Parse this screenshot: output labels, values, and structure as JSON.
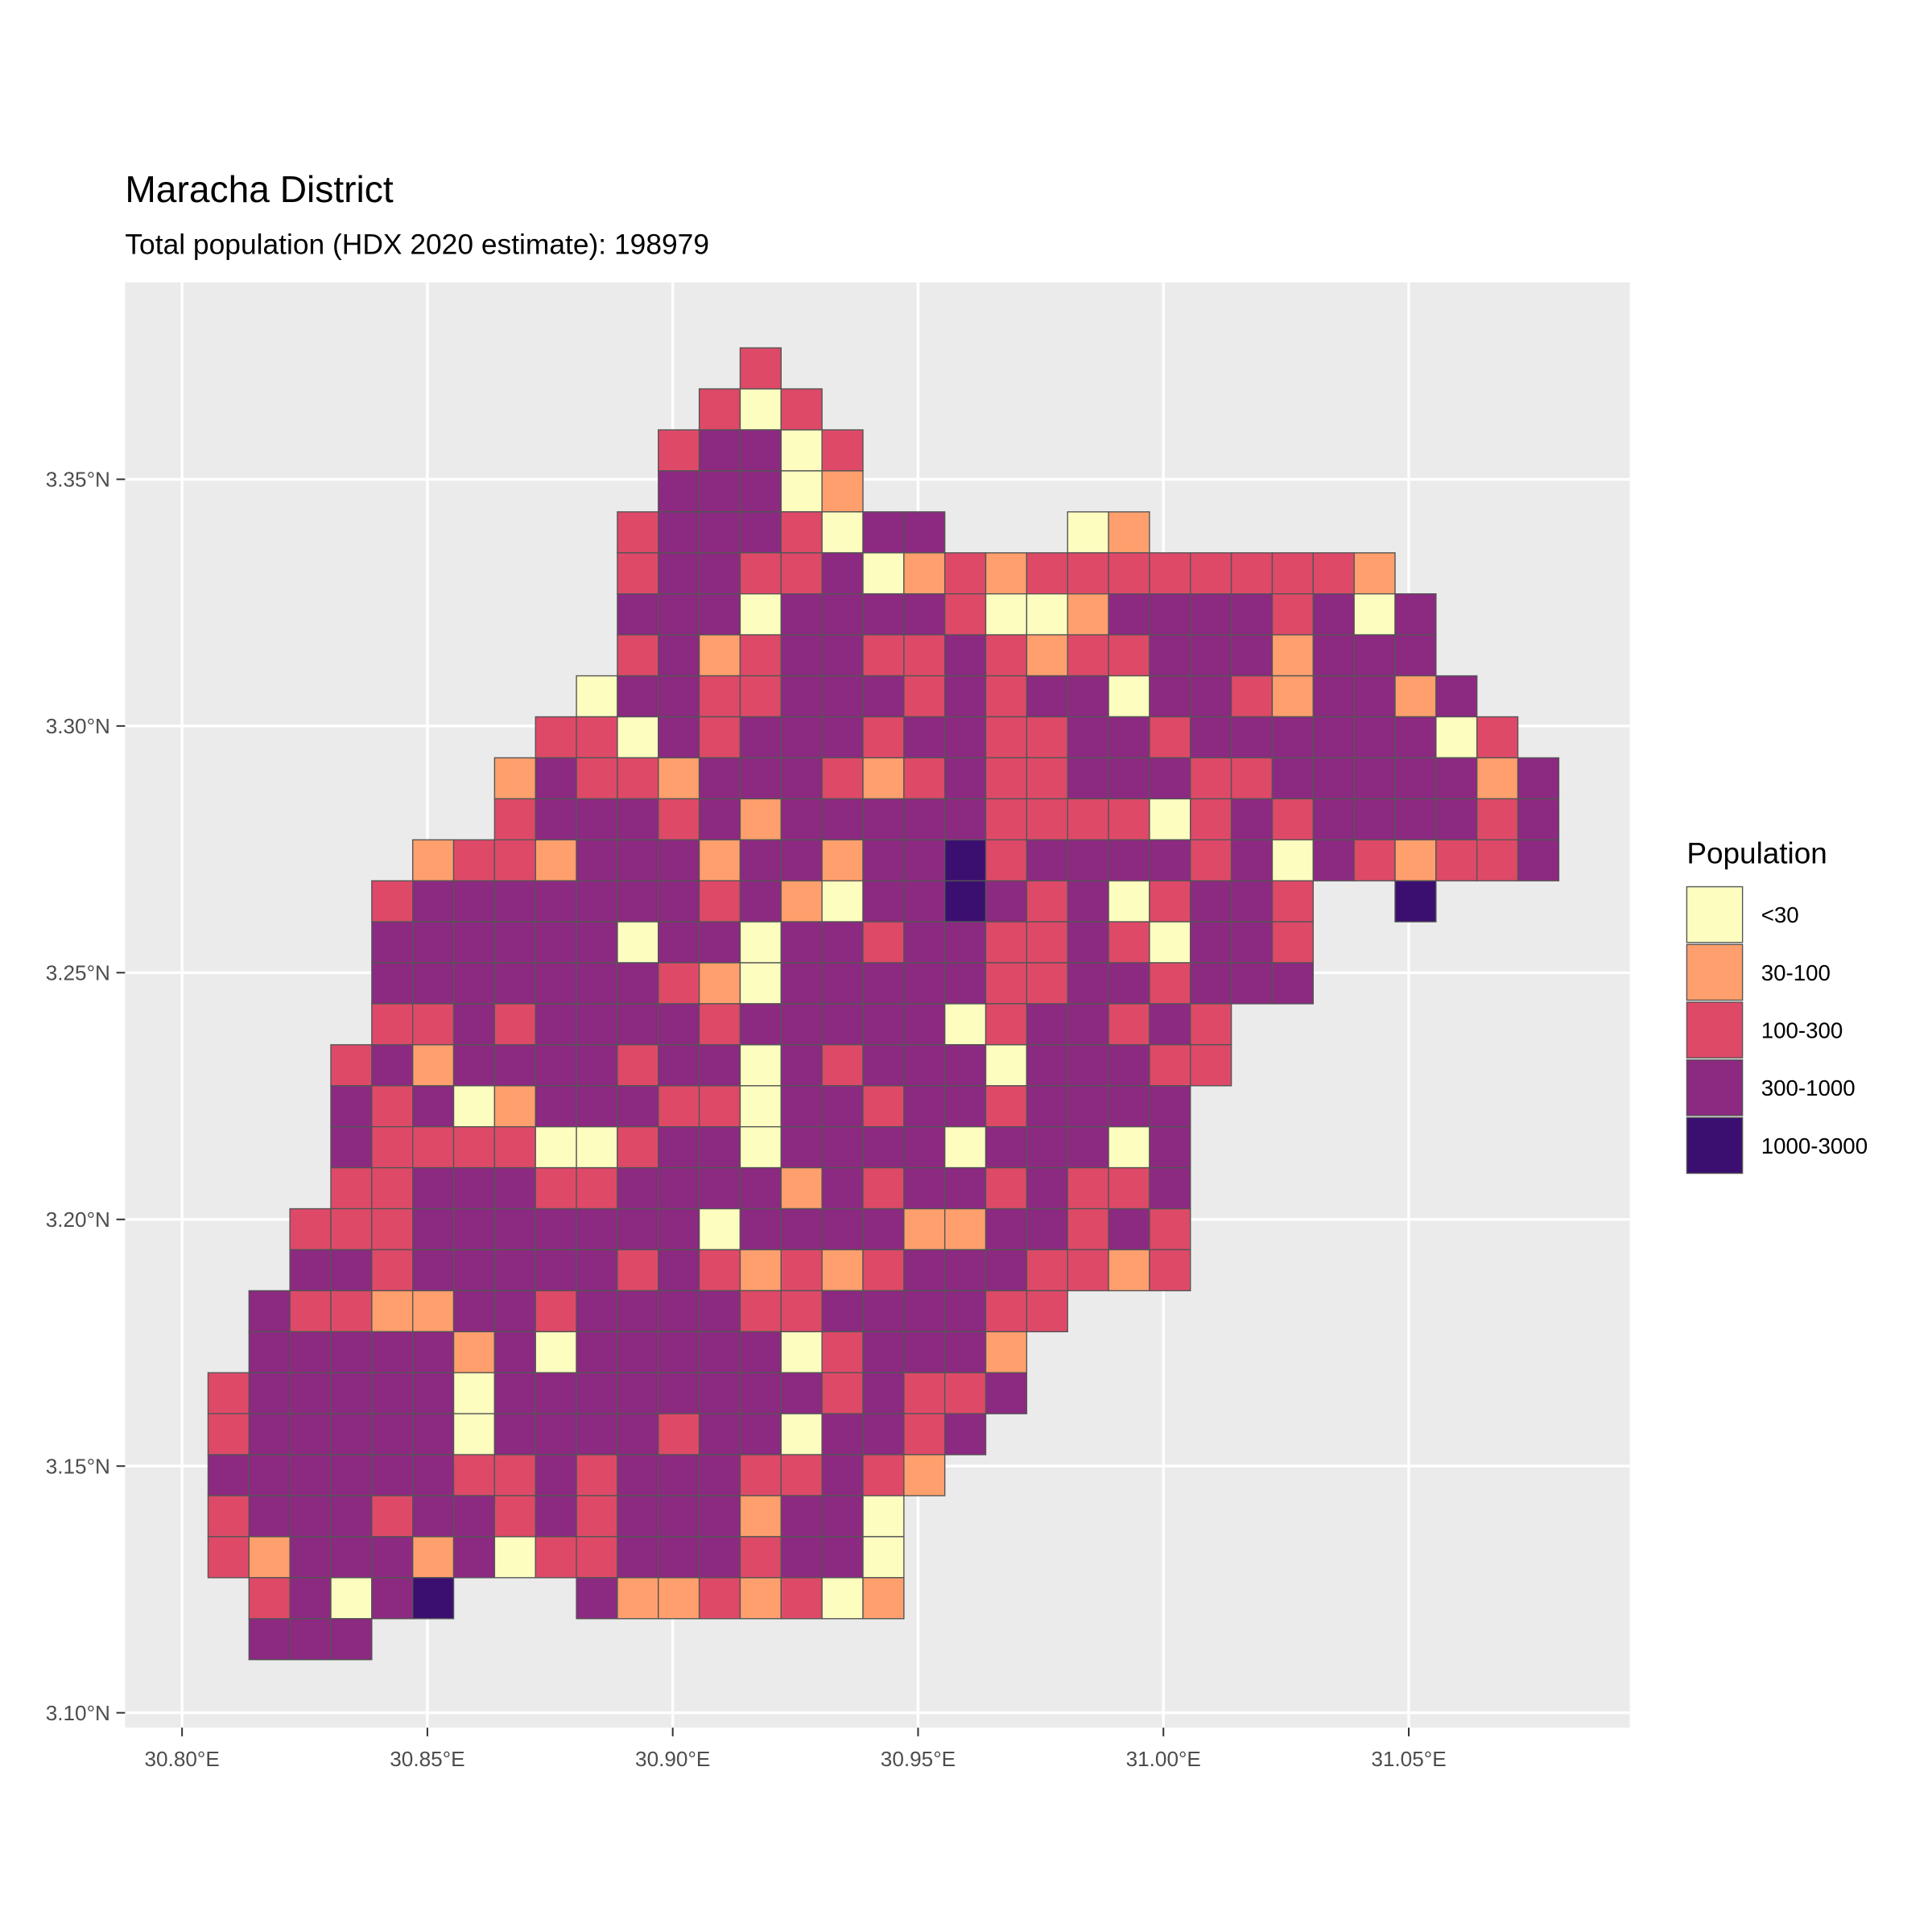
{
  "chart_data": {
    "type": "heatmap",
    "title": "Maracha District",
    "subtitle": "Total population (HDX 2020 estimate): 198979",
    "xlabel": "",
    "ylabel": "",
    "x_ticks": [
      {
        "value": 30.8,
        "label": "30.80°E"
      },
      {
        "value": 30.85,
        "label": "30.85°E"
      },
      {
        "value": 30.9,
        "label": "30.90°E"
      },
      {
        "value": 30.95,
        "label": "30.95°E"
      },
      {
        "value": 31.0,
        "label": "31.00°E"
      },
      {
        "value": 31.05,
        "label": "31.05°E"
      }
    ],
    "y_ticks": [
      {
        "value": 3.1,
        "label": "3.10°N"
      },
      {
        "value": 3.15,
        "label": "3.15°N"
      },
      {
        "value": 3.2,
        "label": "3.20°N"
      },
      {
        "value": 3.25,
        "label": "3.25°N"
      },
      {
        "value": 3.3,
        "label": "3.30°N"
      },
      {
        "value": 3.35,
        "label": "3.35°N"
      }
    ],
    "xlim": [
      30.789,
      31.096
    ],
    "ylim": [
      3.097,
      3.39
    ],
    "grid": true,
    "legend": {
      "title": "Population",
      "placement": "right",
      "entries": [
        {
          "code": "1",
          "label": "<30",
          "color": "#FCFDBF"
        },
        {
          "code": "2",
          "label": "30-100",
          "color": "#FE9F6D"
        },
        {
          "code": "3",
          "label": "100-300",
          "color": "#DE4968"
        },
        {
          "code": "4",
          "label": "300-1000",
          "color": "#8C2981"
        },
        {
          "code": "5",
          "label": "1000-3000",
          "color": "#3B0F70"
        }
      ]
    },
    "cell_size_deg": 0.008333,
    "grid_rows": [
      {
        "start_col": 13,
        "cells": "3"
      },
      {
        "start_col": 12,
        "cells": "313"
      },
      {
        "start_col": 11,
        "cells": "34413"
      },
      {
        "start_col": 11,
        "cells": "44412"
      },
      {
        "start_col": 10,
        "cells": "34443144...12"
      },
      {
        "start_col": 10,
        "cells": "3443341232333333332"
      },
      {
        "start_col": 10,
        "cells": "44414444311244443414"
      },
      {
        "start_col": 10,
        "cells": "34234433432334442444"
      },
      {
        "start_col": 9,
        "cells": "1443344434344144324424"
      },
      {
        "start_col": 8,
        "cells": "331434443443344344444413"
      },
      {
        "start_col": 7,
        "cells": "24332444323433444334444424"
      },
      {
        "start_col": 7,
        "cells": "34443424444433331343444434"
      },
      {
        "start_col": 5,
        "cells": "2332444244244534444341432334"
      },
      {
        "start_col": 4,
        "cells": "34444444342144543413443..5"
      },
      {
        "start_col": 4,
        "cells": "44444414414434433431443"
      },
      {
        "start_col": 4,
        "cells": "44444443214444433443444"
      },
      {
        "start_col": 4,
        "cells": "334344443444441344343"
      },
      {
        "start_col": 3,
        "cells": "3424444344143444144433"
      },
      {
        "start_col": 3,
        "cells": "434124443314434434444"
      },
      {
        "start_col": 3,
        "cells": "433331134414444144414"
      },
      {
        "start_col": 3,
        "cells": "334443344442434434334"
      },
      {
        "start_col": 2,
        "cells": "3334444444144442244343"
      },
      {
        "start_col": 2,
        "cells": "4434444434323234443323"
      },
      {
        "start_col": 1,
        "cells": "43322443444433444433"
      },
      {
        "start_col": 1,
        "cells": "4444424144444134442"
      },
      {
        "start_col": 0,
        "cells": "34444414444444434334"
      },
      {
        "start_col": 0,
        "cells": "3444441444434414434"
      },
      {
        "start_col": 0,
        "cells": "444444334344433432"
      },
      {
        "start_col": 0,
        "cells": "34443443434442441"
      },
      {
        "start_col": 0,
        "cells": "32444241334443441"
      },
      {
        "start_col": 1,
        "cells": "34145...42232312"
      },
      {
        "start_col": 1,
        "cells": "444"
      }
    ]
  }
}
